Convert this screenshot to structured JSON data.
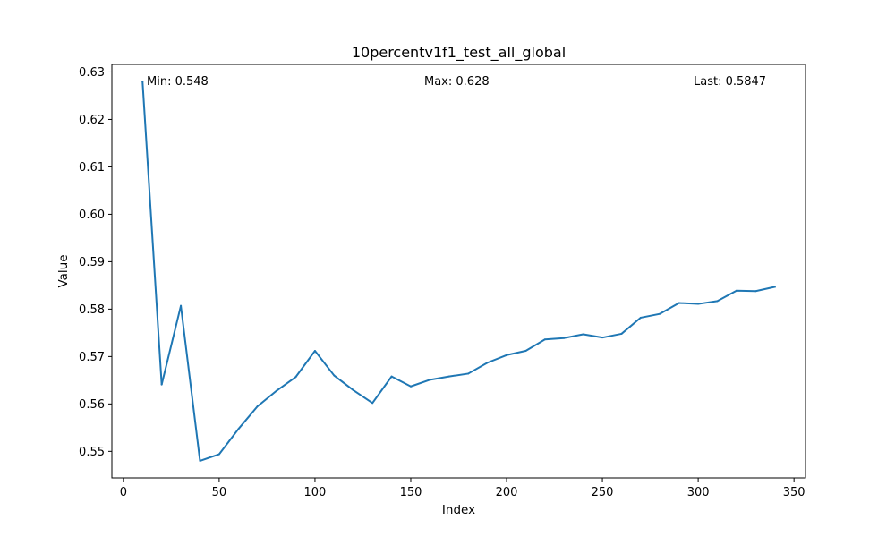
{
  "chart_data": {
    "type": "line",
    "title": "10percentv1f1_test_all_global",
    "xlabel": "Index",
    "ylabel": "Value",
    "xlim": [
      -6,
      356
    ],
    "ylim": [
      0.5444,
      0.6316
    ],
    "xticks": [
      0,
      50,
      100,
      150,
      200,
      250,
      300,
      350
    ],
    "yticks": [
      0.55,
      0.56,
      0.57,
      0.58,
      0.59,
      0.6,
      0.61,
      0.62,
      0.63
    ],
    "ytick_labels": [
      "0.55",
      "0.56",
      "0.57",
      "0.58",
      "0.59",
      "0.60",
      "0.61",
      "0.62",
      "0.63"
    ],
    "grid": false,
    "series_color": "#1f77b4",
    "x": [
      10,
      20,
      30,
      40,
      50,
      60,
      70,
      80,
      90,
      100,
      110,
      120,
      130,
      140,
      150,
      160,
      170,
      180,
      190,
      200,
      210,
      220,
      230,
      240,
      250,
      260,
      270,
      280,
      290,
      300,
      310,
      320,
      330,
      340
    ],
    "values": [
      0.628,
      0.5641,
      0.5807,
      0.548,
      0.5494,
      0.5547,
      0.5595,
      0.5628,
      0.5657,
      0.5712,
      0.566,
      0.5629,
      0.5602,
      0.5658,
      0.5637,
      0.5651,
      0.5658,
      0.5664,
      0.5687,
      0.5703,
      0.5712,
      0.5736,
      0.5739,
      0.5747,
      0.574,
      0.5748,
      0.5782,
      0.579,
      0.5813,
      0.5811,
      0.5817,
      0.5839,
      0.5838,
      0.5847
    ],
    "annotations": {
      "min": "Min: 0.548",
      "max": "Max: 0.628",
      "last": "Last: 0.5847"
    }
  }
}
